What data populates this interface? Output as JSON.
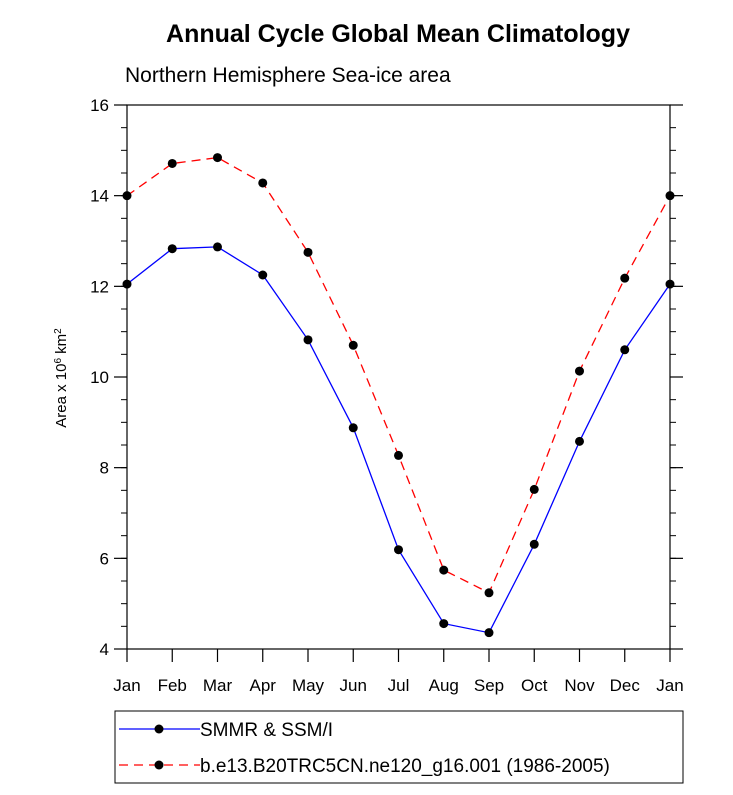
{
  "chart_data": {
    "type": "line",
    "title": "Annual Cycle Global Mean Climatology",
    "subtitle": "Northern Hemisphere Sea-ice area",
    "ylabel": {
      "prefix": "Area x 10",
      "exponent": "6",
      "unit": " km",
      "unit_exponent": "2"
    },
    "xlabel": "",
    "categories": [
      "Jan",
      "Feb",
      "Mar",
      "Apr",
      "May",
      "Jun",
      "Jul",
      "Aug",
      "Sep",
      "Oct",
      "Nov",
      "Dec",
      "Jan"
    ],
    "ylim": [
      4,
      16
    ],
    "yticks": [
      4,
      6,
      8,
      10,
      12,
      14,
      16
    ],
    "yminor_step": 0.5,
    "series": [
      {
        "name": "SMMR & SSM/I",
        "color": "#0000ff",
        "dash": "solid",
        "marker_color": "#000000",
        "values": [
          12.05,
          12.83,
          12.87,
          12.25,
          10.82,
          8.88,
          6.19,
          4.56,
          4.36,
          6.31,
          8.58,
          10.6,
          12.05
        ]
      },
      {
        "name": "b.e13.B20TRC5CN.ne120_g16.001 (1986-2005)",
        "color": "#ff0000",
        "dash": "dashed",
        "marker_color": "#000000",
        "values": [
          14.0,
          14.71,
          14.84,
          14.28,
          12.75,
          10.7,
          8.27,
          5.74,
          5.24,
          7.52,
          10.13,
          12.18,
          14.0
        ]
      }
    ],
    "legend_position": "bottom-left",
    "grid": false
  }
}
